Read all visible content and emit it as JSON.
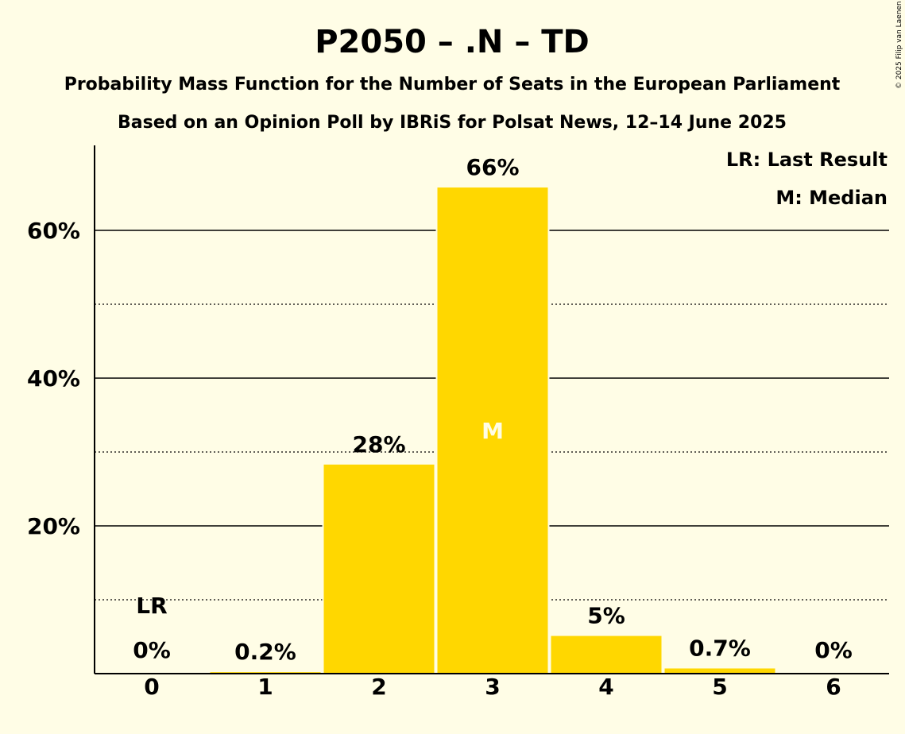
{
  "chart_data": {
    "type": "bar",
    "title": "P2050 – .N – TD",
    "subtitle": "Probability Mass Function for the Number of Seats in the European Parliament",
    "subtitle2": "Based on an Opinion Poll by IBRiS for Polsat News, 12–14 June 2025",
    "categories": [
      "0",
      "1",
      "2",
      "3",
      "4",
      "5",
      "6"
    ],
    "values": [
      0,
      0.2,
      28.3,
      65.8,
      5.1,
      0.7,
      0
    ],
    "data_labels": [
      "0%",
      "0.2%",
      "28%",
      "66%",
      "5%",
      "0.7%",
      "0%"
    ],
    "ylim": [
      0,
      70
    ],
    "yticks": [
      20,
      40,
      60
    ],
    "ytick_labels": [
      "20%",
      "40%",
      "60%"
    ],
    "minor_gridlines": [
      10,
      30,
      50
    ],
    "last_result_category": "0",
    "last_result_label": "LR",
    "median_category": "3",
    "median_label": "M",
    "legend": [
      "LR: Last Result",
      "M: Median"
    ],
    "legend_position": "top-right",
    "bar_color": "#FFD700",
    "background_color": "#FFFDE6",
    "copyright": "© 2025 Filip van Laenen"
  }
}
